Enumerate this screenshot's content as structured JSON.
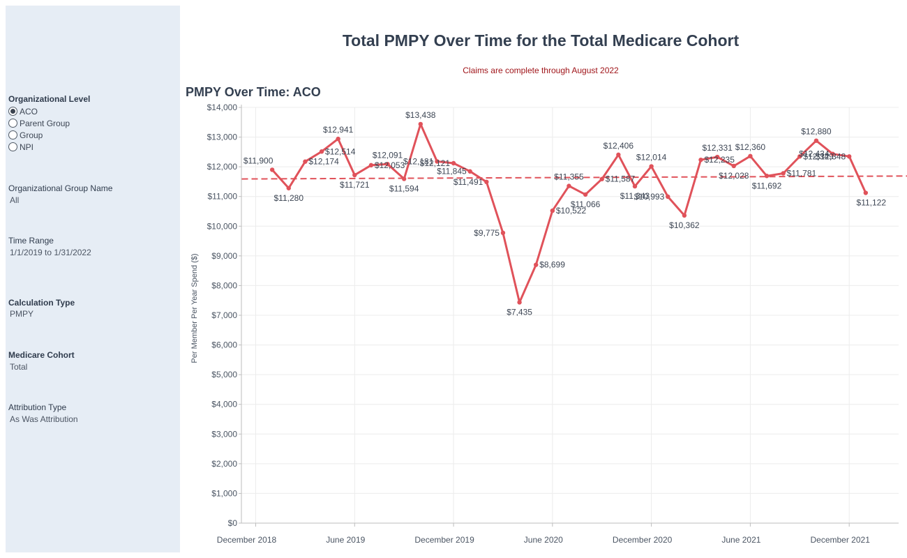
{
  "header": {
    "title": "Total PMPY Over Time for the Total Medicare Cohort",
    "subtitle": "Claims are complete through August 2022"
  },
  "filters": {
    "org_level": {
      "title": "Organizational Level",
      "options": [
        "ACO",
        "Parent Group",
        "Group",
        "NPI"
      ],
      "selected": "ACO"
    },
    "org_group_name": {
      "title": "Organizational Group Name",
      "value": "All"
    },
    "time_range": {
      "title": "Time Range",
      "value": "1/1/2019 to 1/31/2022"
    },
    "calculation_type": {
      "title": "Calculation Type",
      "value": "PMPY"
    },
    "medicare_cohort": {
      "title": "Medicare Cohort",
      "value": "Total"
    },
    "attribution_type": {
      "title": "Attribution Type",
      "value": "As Was Attribution"
    }
  },
  "colors": {
    "line": "#e0525a",
    "trend": "#e0525a",
    "sidebar_bg": "#e6edf5",
    "subtitle": "#a0151a"
  },
  "chart_data": {
    "type": "line",
    "title": "PMPY Over Time: ACO",
    "ylabel": "Per Member Per Year Spend ($)",
    "xlabel": "",
    "ylim": [
      0,
      14000
    ],
    "y_ticks": [
      0,
      1000,
      2000,
      3000,
      4000,
      5000,
      6000,
      7000,
      8000,
      9000,
      10000,
      11000,
      12000,
      13000,
      14000
    ],
    "y_tick_labels": [
      "$0",
      "$1,000",
      "$2,000",
      "$3,000",
      "$4,000",
      "$5,000",
      "$6,000",
      "$7,000",
      "$8,000",
      "$9,000",
      "$10,000",
      "$11,000",
      "$12,000",
      "$13,000",
      "$14,000"
    ],
    "x_ticks": [
      "2018-12",
      "2019-06",
      "2019-12",
      "2020-06",
      "2020-12",
      "2021-06",
      "2021-12"
    ],
    "x_tick_labels": [
      "December 2018",
      "June 2019",
      "December 2019",
      "June 2020",
      "December 2020",
      "June 2021",
      "December 2021"
    ],
    "grid": true,
    "series": [
      {
        "x": [
          "2019-01",
          "2019-02",
          "2019-03",
          "2019-04",
          "2019-05",
          "2019-06",
          "2019-07",
          "2019-08",
          "2019-09",
          "2019-10",
          "2019-11",
          "2019-12",
          "2020-01",
          "2020-02",
          "2020-03",
          "2020-04",
          "2020-05",
          "2020-06",
          "2020-07",
          "2020-08",
          "2020-09",
          "2020-10",
          "2020-11",
          "2020-12",
          "2021-01",
          "2021-02",
          "2021-03",
          "2021-04",
          "2021-05",
          "2021-06",
          "2021-07",
          "2021-08",
          "2021-09",
          "2021-10",
          "2021-11",
          "2021-12",
          "2022-01"
        ],
        "values": [
          11900,
          11280,
          12174,
          12514,
          12941,
          11721,
          12053,
          12091,
          11594,
          13438,
          12181,
          12121,
          11845,
          11491,
          9775,
          7435,
          8699,
          10522,
          11355,
          11066,
          11587,
          12406,
          11343,
          12014,
          10993,
          10362,
          12235,
          12331,
          12028,
          12360,
          11692,
          11781,
          12349,
          12880,
          12434,
          12348,
          11122
        ],
        "labels": [
          "$11,900",
          "$11,280",
          "$12,174",
          "$12,514",
          "$12,941",
          "$11,721",
          "$12,053",
          "$12,091",
          "$11,594",
          "$13,438",
          "$12,181",
          "$12,121",
          "$11,845",
          "$11,491",
          "$9,775",
          "$7,435",
          "$8,699",
          "$10,522",
          "$11,355",
          "$11,066",
          "$11,587",
          "$12,406",
          "$11,343",
          "$12,014",
          "$10,993",
          "$10,362",
          "$12,235",
          "$12,331",
          "$12,028",
          "$12,360",
          "$11,692",
          "$11,781",
          "$12,349",
          "$12,880",
          "$12,434",
          "$12,348",
          "$11,122"
        ]
      }
    ],
    "trend_line": {
      "style": "dashed",
      "from": {
        "x": "2018-12",
        "y": 11590
      },
      "to": {
        "x": "2022-02",
        "y": 11690
      }
    }
  }
}
